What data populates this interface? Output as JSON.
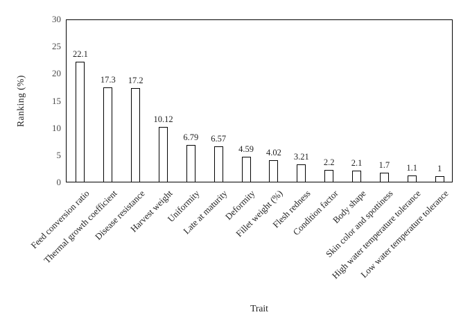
{
  "chart_data": {
    "type": "bar",
    "title": "",
    "xlabel": "Trait",
    "ylabel": "Ranking (%)",
    "categories": [
      "Feed conversion ratio",
      "Thermal growth coefficient",
      "Disease resistance",
      "Harvest weight",
      "Uniformity",
      "Late at maturity",
      "Deformity",
      "Fillet weight (%)",
      "Flesh redness",
      "Condition factor",
      "Body shape",
      "Skin color and spottiness",
      "High water temperature tolerance",
      "Low water temperature tolerance"
    ],
    "values": [
      22.1,
      17.3,
      17.2,
      10.12,
      6.79,
      6.57,
      4.59,
      4.02,
      3.21,
      2.2,
      2.1,
      1.7,
      1.1,
      1
    ],
    "value_labels": [
      "22.1",
      "17.3",
      "17.2",
      "10.12",
      "6.79",
      "6.57",
      "4.59",
      "4.02",
      "3.21",
      "2.2",
      "2.1",
      "1.7",
      "1.1",
      "1"
    ],
    "ylim": [
      0,
      30
    ],
    "yticks": [
      0,
      5,
      10,
      15,
      20,
      25,
      30
    ],
    "grid": "off",
    "legend": "none",
    "bar_fill": "#ffffff",
    "bar_border": "#000000",
    "axis_color": "#000000",
    "value_label_color": "#1f1f1f",
    "tick_label_color": "#4a4a4a"
  }
}
